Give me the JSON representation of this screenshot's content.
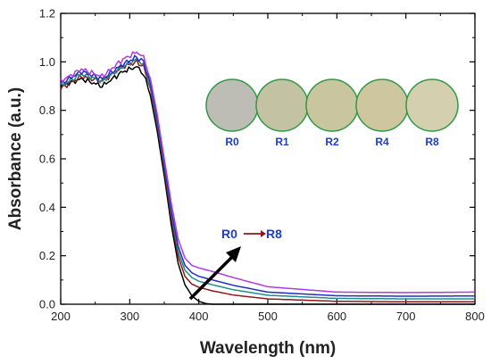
{
  "chart_data": {
    "type": "line",
    "xlabel": "Wavelength (nm)",
    "ylabel": "Absorbance (a.u.)",
    "xlim": [
      200,
      800
    ],
    "ylim": [
      0.0,
      1.2
    ],
    "xticks": [
      "200",
      "300",
      "400",
      "500",
      "600",
      "700",
      "800"
    ],
    "yticks": [
      "0.0",
      "0.2",
      "0.4",
      "0.6",
      "0.8",
      "1.0",
      "1.2"
    ],
    "grid": false,
    "colors": {
      "R0": "#000000",
      "R1": "#8b1a1a",
      "R2": "#1e8f8f",
      "R4": "#1f2fbf",
      "R8": "#b03ae0"
    },
    "series": [
      {
        "name": "R0",
        "color": "#000000",
        "x": [
          200,
          230,
          260,
          290,
          310,
          320,
          330,
          340,
          350,
          360,
          370,
          380,
          390,
          400,
          410,
          420,
          450,
          500,
          600,
          700,
          800
        ],
        "y": [
          0.9,
          0.93,
          0.9,
          0.96,
          0.98,
          0.95,
          0.86,
          0.71,
          0.53,
          0.33,
          0.17,
          0.08,
          0.035,
          0.012,
          0.003,
          0.0,
          0.0,
          0.0,
          0.0,
          0.0,
          0.0
        ]
      },
      {
        "name": "R1",
        "color": "#8b1a1a",
        "x": [
          200,
          230,
          260,
          290,
          310,
          320,
          330,
          340,
          350,
          360,
          370,
          380,
          390,
          400,
          420,
          450,
          500,
          600,
          700,
          800
        ],
        "y": [
          0.89,
          0.94,
          0.92,
          0.98,
          1.0,
          0.98,
          0.89,
          0.74,
          0.56,
          0.36,
          0.2,
          0.115,
          0.083,
          0.07,
          0.055,
          0.038,
          0.022,
          0.012,
          0.01,
          0.01
        ]
      },
      {
        "name": "R2",
        "color": "#1e8f8f",
        "x": [
          200,
          230,
          260,
          290,
          310,
          320,
          330,
          340,
          350,
          360,
          370,
          380,
          390,
          400,
          420,
          450,
          500,
          600,
          700,
          800
        ],
        "y": [
          0.9,
          0.95,
          0.92,
          0.98,
          1.01,
          0.99,
          0.9,
          0.75,
          0.57,
          0.38,
          0.22,
          0.14,
          0.11,
          0.095,
          0.08,
          0.06,
          0.037,
          0.024,
          0.022,
          0.022
        ]
      },
      {
        "name": "R4",
        "color": "#1f2fbf",
        "x": [
          200,
          230,
          260,
          290,
          310,
          320,
          330,
          340,
          350,
          360,
          370,
          380,
          390,
          400,
          420,
          450,
          500,
          600,
          700,
          800
        ],
        "y": [
          0.91,
          0.96,
          0.93,
          0.99,
          1.02,
          1.0,
          0.91,
          0.76,
          0.58,
          0.39,
          0.24,
          0.16,
          0.13,
          0.115,
          0.1,
          0.078,
          0.05,
          0.035,
          0.033,
          0.034
        ]
      },
      {
        "name": "R8",
        "color": "#b03ae0",
        "x": [
          200,
          230,
          260,
          290,
          310,
          320,
          330,
          340,
          350,
          360,
          370,
          380,
          390,
          400,
          420,
          450,
          500,
          600,
          700,
          800
        ],
        "y": [
          0.92,
          0.97,
          0.94,
          1.01,
          1.04,
          1.02,
          0.93,
          0.78,
          0.6,
          0.42,
          0.27,
          0.19,
          0.16,
          0.15,
          0.135,
          0.11,
          0.072,
          0.05,
          0.048,
          0.05
        ]
      }
    ],
    "samples": [
      {
        "label": "R0",
        "swatch": "#bdbdb5"
      },
      {
        "label": "R1",
        "swatch": "#c3c2a2"
      },
      {
        "label": "R2",
        "swatch": "#c8c59f"
      },
      {
        "label": "R4",
        "swatch": "#cdc69f"
      },
      {
        "label": "R8",
        "swatch": "#d4cfae"
      }
    ],
    "sample_ring_color": "#2e9a45",
    "annotation": {
      "from": "R0",
      "to": "R8",
      "arrow_color": "#8b1a1a"
    },
    "trend_arrow_color": "#000000"
  }
}
